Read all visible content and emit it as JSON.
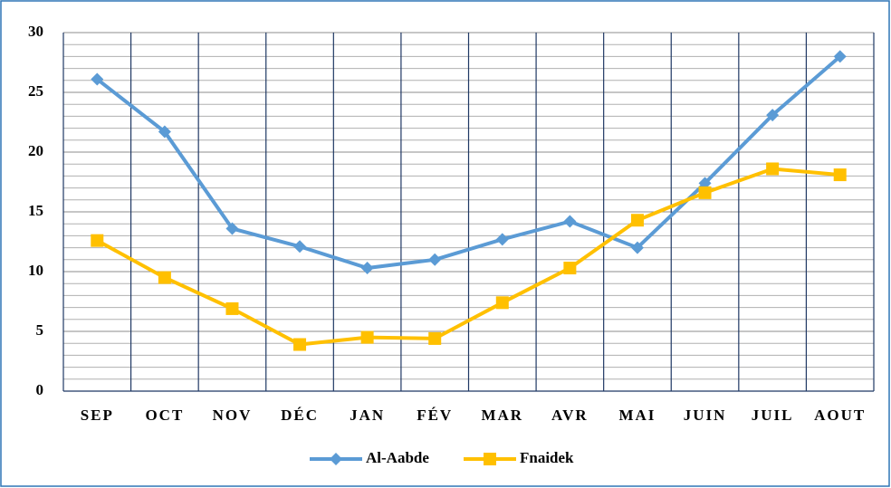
{
  "chart_data": {
    "type": "line",
    "categories": [
      "SEP",
      "OCT",
      "NOV",
      "DÉC",
      "JAN",
      "FÉV",
      "MAR",
      "AVR",
      "MAI",
      "JUIN",
      "JUIL",
      "AOUT"
    ],
    "series": [
      {
        "name": "Al-Aabde",
        "color": "#5b9bd5",
        "marker": "diamond",
        "values": [
          26.1,
          21.7,
          13.6,
          12.1,
          10.3,
          11.0,
          12.7,
          14.2,
          12.0,
          17.4,
          23.1,
          28.0
        ]
      },
      {
        "name": "Fnaidek",
        "color": "#ffc000",
        "marker": "square",
        "values": [
          12.6,
          9.5,
          6.9,
          3.9,
          4.5,
          4.4,
          7.4,
          10.3,
          14.3,
          16.6,
          18.6,
          18.1
        ]
      }
    ],
    "ylim": [
      0,
      30
    ],
    "yticks": [
      0,
      5,
      10,
      15,
      20,
      25,
      30
    ],
    "grid": true,
    "legend": "bottom"
  }
}
